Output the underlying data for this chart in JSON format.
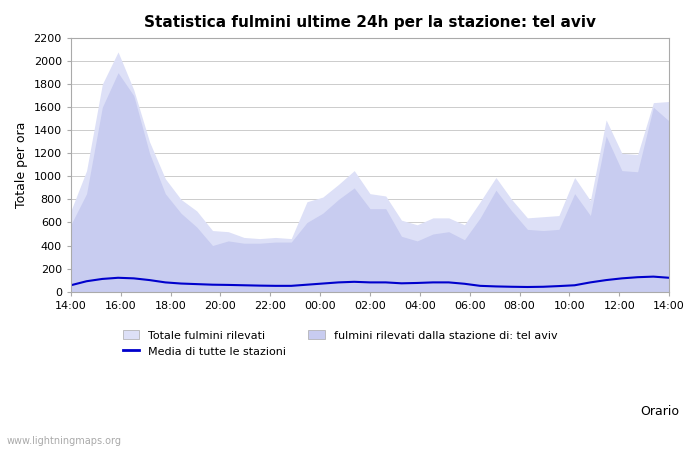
{
  "title": "Statistica fulmini ultime 24h per la stazione: tel aviv",
  "ylabel": "Totale per ora",
  "xlabel": "Orario",
  "xlabels": [
    "14:00",
    "16:00",
    "18:00",
    "20:00",
    "22:00",
    "00:00",
    "02:00",
    "04:00",
    "06:00",
    "08:00",
    "10:00",
    "12:00",
    "14:00"
  ],
  "ylim": [
    0,
    2200
  ],
  "yticks": [
    0,
    200,
    400,
    600,
    800,
    1000,
    1200,
    1400,
    1600,
    1800,
    2000,
    2200
  ],
  "fill_color_light": "#dde0f7",
  "fill_color_dark": "#c8ccf0",
  "line_color": "#0000cc",
  "background_color": "#ffffff",
  "watermark": "www.lightningmaps.org",
  "legend_labels": [
    "Totale fulmini rilevati",
    "fulmini rilevati dalla stazione di: tel aviv",
    "Media di tutte le stazioni"
  ],
  "total_data": [
    700,
    1050,
    1800,
    2080,
    1750,
    1300,
    980,
    800,
    700,
    530,
    520,
    470,
    460,
    470,
    460,
    780,
    820,
    930,
    1050,
    850,
    830,
    620,
    580,
    640,
    640,
    580,
    780,
    990,
    800,
    640,
    650,
    660,
    990,
    790,
    1490,
    1200,
    1190,
    1640,
    1650
  ],
  "station_data": [
    580,
    850,
    1600,
    1900,
    1700,
    1200,
    850,
    680,
    560,
    400,
    440,
    420,
    420,
    430,
    430,
    600,
    680,
    800,
    900,
    720,
    720,
    480,
    440,
    500,
    520,
    450,
    640,
    880,
    700,
    540,
    530,
    540,
    850,
    660,
    1350,
    1050,
    1040,
    1600,
    1480
  ],
  "avg_data": [
    55,
    90,
    110,
    120,
    115,
    100,
    80,
    70,
    65,
    60,
    58,
    55,
    52,
    50,
    50,
    60,
    70,
    80,
    85,
    80,
    80,
    72,
    75,
    80,
    80,
    68,
    50,
    45,
    42,
    40,
    42,
    48,
    55,
    80,
    100,
    115,
    125,
    130,
    120
  ]
}
